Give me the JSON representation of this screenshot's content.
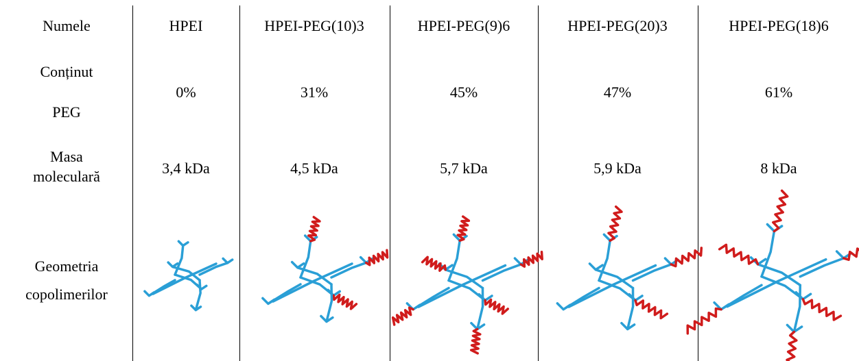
{
  "table": {
    "row_labels": [
      [
        "Numele"
      ],
      [
        "Conținut",
        "PEG"
      ],
      [
        "Masa",
        "moleculară"
      ],
      [
        "Geometria",
        "copolimerilor"
      ]
    ],
    "columns": [
      {
        "name": "HPEI",
        "peg": "0%",
        "mass": "3,4 kDa"
      },
      {
        "name": "HPEI-PEG(10)3",
        "peg": "31%",
        "mass": "4,5 kDa"
      },
      {
        "name": "HPEI-PEG(9)6",
        "peg": "45%",
        "mass": "5,7 kDa"
      },
      {
        "name": "HPEI-PEG(20)3",
        "peg": "47%",
        "mass": "5,9 kDa"
      },
      {
        "name": "HPEI-PEG(18)6",
        "peg": "61%",
        "mass": "8 kDa"
      }
    ]
  }
}
